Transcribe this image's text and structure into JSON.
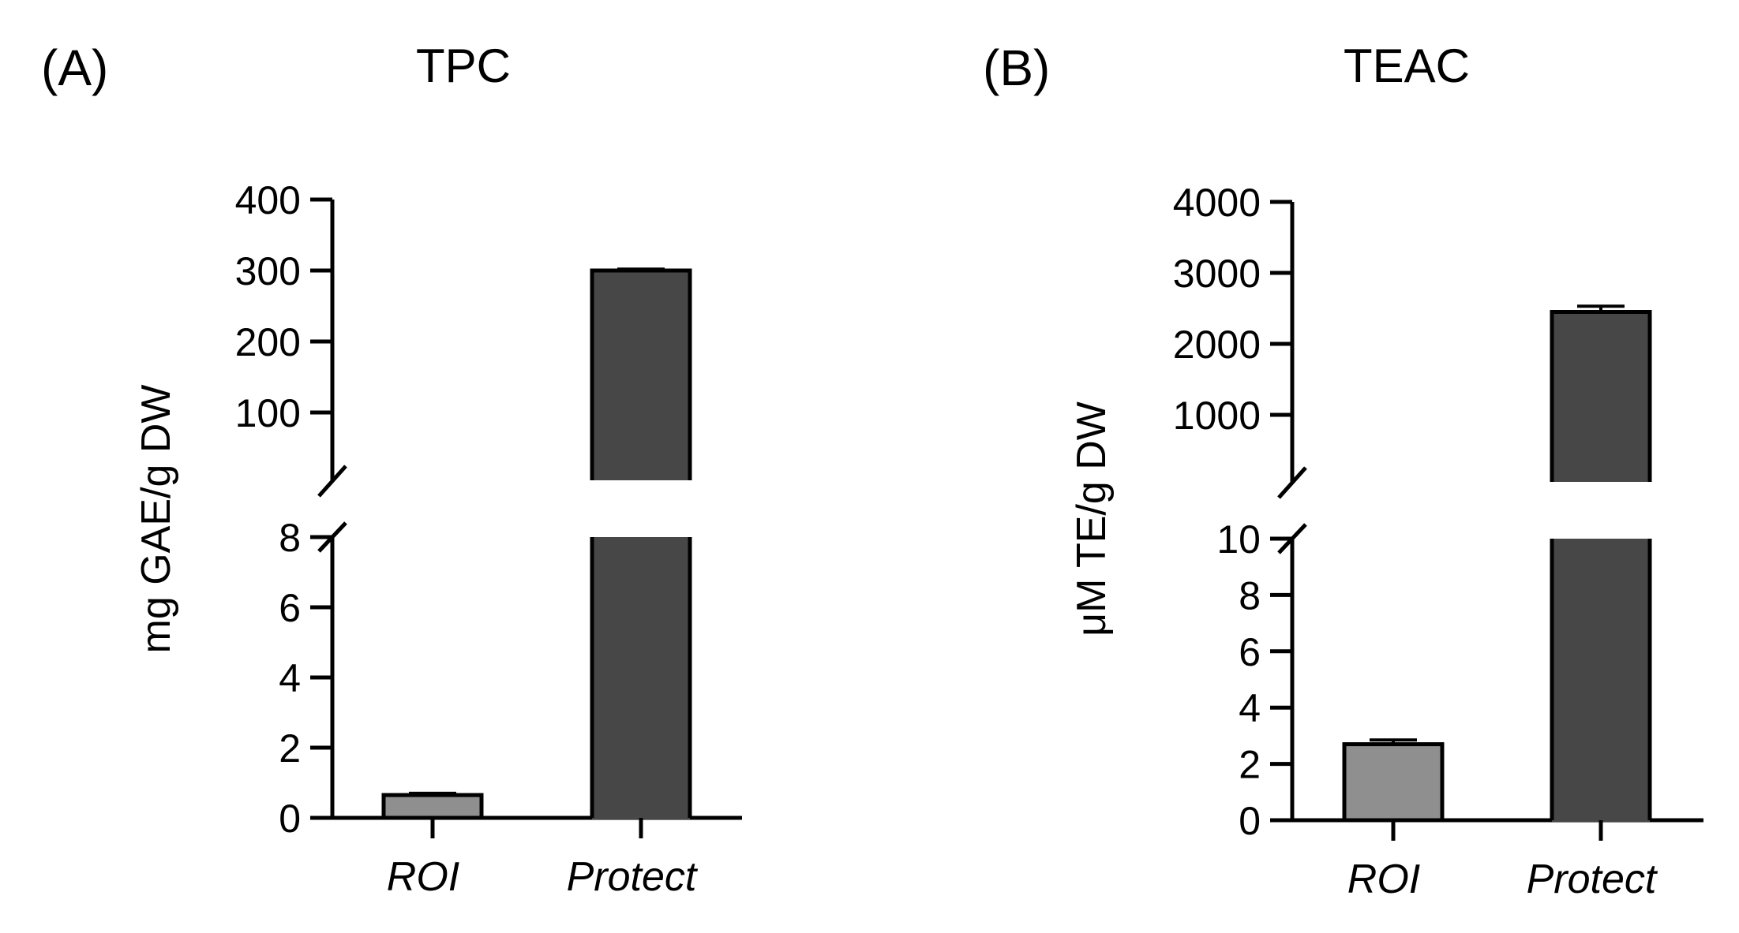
{
  "chart_data": [
    {
      "panel": "(A)",
      "title": "TPC",
      "type": "bar",
      "ylabel": "mg GAE/g DW",
      "categories": [
        "ROI",
        "Protect"
      ],
      "values": [
        0.65,
        300
      ],
      "errors": [
        0.05,
        2
      ],
      "colors": [
        "#8f8f8f",
        "#474747"
      ],
      "axis_break": true,
      "lower_segment": {
        "ylim": [
          0,
          8
        ],
        "ticks": [
          "0",
          "2",
          "4",
          "6",
          "8"
        ]
      },
      "upper_segment": {
        "ylim": [
          0,
          400
        ],
        "ticks": [
          "100",
          "200",
          "300",
          "400"
        ]
      },
      "grid": false,
      "legend": "none"
    },
    {
      "panel": "(B)",
      "title": "TEAC",
      "type": "bar",
      "ylabel": "μM TE/g DW",
      "categories": [
        "ROI",
        "Protect"
      ],
      "values": [
        2.7,
        2450
      ],
      "errors": [
        0.15,
        80
      ],
      "colors": [
        "#8f8f8f",
        "#474747"
      ],
      "axis_break": true,
      "lower_segment": {
        "ylim": [
          0,
          10
        ],
        "ticks": [
          "0",
          "2",
          "4",
          "6",
          "8",
          "10"
        ]
      },
      "upper_segment": {
        "ylim": [
          0,
          4000
        ],
        "ticks": [
          "1000",
          "2000",
          "3000",
          "4000"
        ]
      },
      "grid": false,
      "legend": "none"
    }
  ]
}
